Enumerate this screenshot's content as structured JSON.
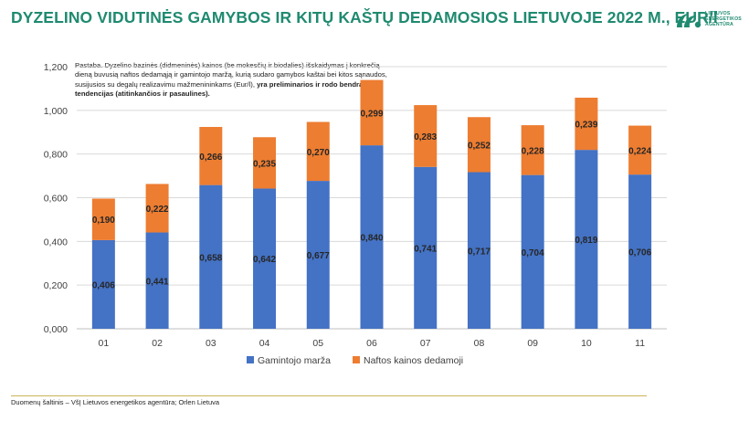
{
  "header": {
    "title": "DYZELINO VIDUTINĖS GAMYBOS IR KITŲ KAŠTŲ DEDAMOSIOS LIETUVOJE 2022 M., EUR/l",
    "logo_text": "LIETUVOS\nENERGETIKOS\nAGENTŪRA"
  },
  "note": {
    "text": "Pastaba. Dyzelino bazinės (didmeninės) kainos (be mokesčių ir biodalies) išskaidymas į konkrečią dieną buvusią naftos dedamąją ir gamintojo maržą, kurią sudaro gamybos kaštai bei kitos sąnaudos, susijusios su degalų realizavimu mažmenininkams (Eur/l), ",
    "bold_text": "yra preliminarios ir rodo bendras tendencijas (atitinkančios ir pasaulines)."
  },
  "footer": {
    "source": "Duomenų šaltinis – VšĮ Lietuvos energetikos agentūra; Orlen Lietuva"
  },
  "colors": {
    "title": "#1f8a70",
    "series1": "#4472c4",
    "series2": "#ed7d31",
    "grid": "#d9d9d9"
  },
  "chart_data": {
    "type": "bar",
    "stacked": true,
    "categories": [
      "01",
      "02",
      "03",
      "04",
      "05",
      "06",
      "07",
      "08",
      "09",
      "10",
      "11"
    ],
    "series": [
      {
        "name": "Gamintojo marža",
        "values": [
          0.406,
          0.441,
          0.658,
          0.642,
          0.677,
          0.84,
          0.741,
          0.717,
          0.704,
          0.819,
          0.706
        ]
      },
      {
        "name": "Naftos kainos dedamoji",
        "values": [
          0.19,
          0.222,
          0.266,
          0.235,
          0.27,
          0.299,
          0.283,
          0.252,
          0.228,
          0.239,
          0.224
        ]
      }
    ],
    "ylim": [
      0,
      1.2
    ],
    "yticks": [
      "0,000",
      "0,200",
      "0,400",
      "0,600",
      "0,800",
      "1,000",
      "1,200"
    ],
    "labels": [
      [
        "0,406",
        "0,441",
        "0,658",
        "0,642",
        "0,677",
        "0,840",
        "0,741",
        "0,717",
        "0,704",
        "0,819",
        "0,706"
      ],
      [
        "0,190",
        "0,222",
        "0,266",
        "0,235",
        "0,270",
        "0,299",
        "0,283",
        "0,252",
        "0,228",
        "0,239",
        "0,224"
      ]
    ],
    "grid": true,
    "legend": "bottom"
  }
}
